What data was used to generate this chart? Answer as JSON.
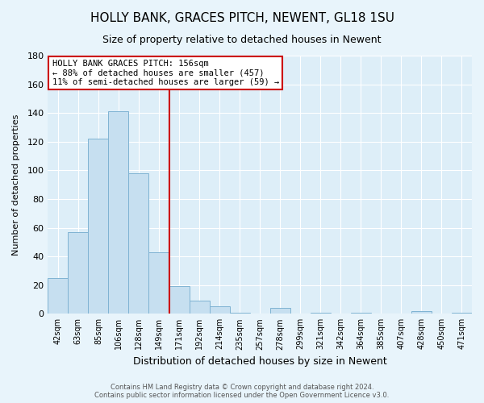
{
  "title": "HOLLY BANK, GRACES PITCH, NEWENT, GL18 1SU",
  "subtitle": "Size of property relative to detached houses in Newent",
  "xlabel": "Distribution of detached houses by size in Newent",
  "ylabel": "Number of detached properties",
  "bar_labels": [
    "42sqm",
    "63sqm",
    "85sqm",
    "106sqm",
    "128sqm",
    "149sqm",
    "171sqm",
    "192sqm",
    "214sqm",
    "235sqm",
    "257sqm",
    "278sqm",
    "299sqm",
    "321sqm",
    "342sqm",
    "364sqm",
    "385sqm",
    "407sqm",
    "428sqm",
    "450sqm",
    "471sqm"
  ],
  "bar_values": [
    25,
    57,
    122,
    141,
    98,
    43,
    19,
    9,
    5,
    1,
    0,
    4,
    0,
    1,
    0,
    1,
    0,
    0,
    2,
    0,
    1
  ],
  "bar_color": "#c6dff0",
  "bar_edge_color": "#7fb3d3",
  "vline_x": 5.5,
  "vline_color": "#cc0000",
  "annotation_title": "HOLLY BANK GRACES PITCH: 156sqm",
  "annotation_line1": "← 88% of detached houses are smaller (457)",
  "annotation_line2": "11% of semi-detached houses are larger (59) →",
  "annotation_box_color": "white",
  "annotation_box_edge": "#cc0000",
  "ylim": [
    0,
    180
  ],
  "yticks": [
    0,
    20,
    40,
    60,
    80,
    100,
    120,
    140,
    160,
    180
  ],
  "footer1": "Contains HM Land Registry data © Crown copyright and database right 2024.",
  "footer2": "Contains public sector information licensed under the Open Government Licence v3.0.",
  "bg_color": "#e8f4fb",
  "plot_bg_color": "#ddeef8",
  "grid_color": "#ffffff"
}
